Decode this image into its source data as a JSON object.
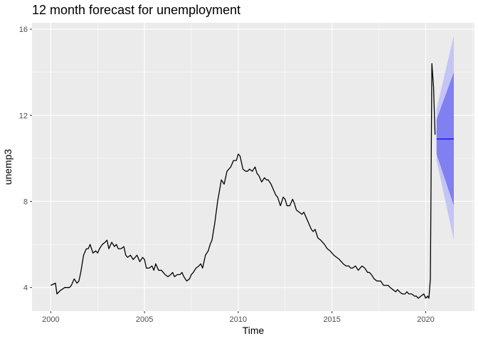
{
  "chart_data": {
    "type": "line",
    "title": "12 month forecast for unemployment",
    "xlabel": "Time",
    "ylabel": "unemp3",
    "xlim": [
      1999.0,
      2022.6
    ],
    "ylim": [
      2.9,
      16.3
    ],
    "x_ticks": [
      2000,
      2005,
      2010,
      2015,
      2020
    ],
    "x_tick_labels": [
      "2000",
      "2005",
      "2010",
      "2015",
      "2020"
    ],
    "y_ticks": [
      4,
      8,
      12,
      16
    ],
    "y_tick_labels": [
      "4",
      "8",
      "12",
      "16"
    ],
    "grid": true,
    "colors": {
      "panel": "#ebebeb",
      "grid_major": "#ffffff",
      "series": "#000000",
      "forecast_line": "#0000ff",
      "band_80": "#8080f0",
      "band_95": "#c4c4f5"
    },
    "series": [
      {
        "x": [
          2000.0,
          2000.25,
          2000.33,
          2000.5,
          2000.75,
          2001.0,
          2001.1,
          2001.25,
          2001.4,
          2001.5,
          2001.6,
          2001.75,
          2001.9,
          2002.0,
          2002.1,
          2002.25,
          2002.4,
          2002.5,
          2002.6,
          2002.75,
          2002.9,
          2003.0,
          2003.1,
          2003.25,
          2003.4,
          2003.5,
          2003.6,
          2003.75,
          2003.9,
          2004.0,
          2004.1,
          2004.25,
          2004.4,
          2004.5,
          2004.6,
          2004.75,
          2004.9,
          2005.0,
          2005.1,
          2005.25,
          2005.4,
          2005.5,
          2005.6,
          2005.75,
          2005.9,
          2006.0,
          2006.1,
          2006.25,
          2006.4,
          2006.5,
          2006.6,
          2006.75,
          2006.9,
          2007.0,
          2007.1,
          2007.25,
          2007.4,
          2007.5,
          2007.6,
          2007.75,
          2007.9,
          2008.0,
          2008.1,
          2008.25,
          2008.4,
          2008.5,
          2008.6,
          2008.75,
          2008.9,
          2009.0,
          2009.1,
          2009.25,
          2009.4,
          2009.5,
          2009.6,
          2009.75,
          2009.9,
          2010.0,
          2010.1,
          2010.25,
          2010.4,
          2010.5,
          2010.6,
          2010.75,
          2010.9,
          2011.0,
          2011.1,
          2011.25,
          2011.4,
          2011.5,
          2011.6,
          2011.75,
          2011.9,
          2012.0,
          2012.1,
          2012.25,
          2012.4,
          2012.5,
          2012.6,
          2012.75,
          2012.9,
          2013.0,
          2013.1,
          2013.25,
          2013.4,
          2013.5,
          2013.6,
          2013.75,
          2013.9,
          2014.0,
          2014.1,
          2014.25,
          2014.4,
          2014.5,
          2014.6,
          2014.75,
          2014.9,
          2015.0,
          2015.1,
          2015.25,
          2015.4,
          2015.5,
          2015.6,
          2015.75,
          2015.9,
          2016.0,
          2016.1,
          2016.25,
          2016.4,
          2016.5,
          2016.6,
          2016.75,
          2016.9,
          2017.0,
          2017.1,
          2017.25,
          2017.4,
          2017.5,
          2017.6,
          2017.75,
          2017.9,
          2018.0,
          2018.1,
          2018.25,
          2018.4,
          2018.5,
          2018.6,
          2018.75,
          2018.9,
          2019.0,
          2019.1,
          2019.25,
          2019.4,
          2019.5,
          2019.6,
          2019.75,
          2019.9,
          2020.0,
          2020.1,
          2020.17,
          2020.25,
          2020.33,
          2020.42,
          2020.5
        ],
        "values": [
          4.1,
          4.2,
          3.7,
          3.85,
          4.0,
          4.0,
          4.1,
          4.4,
          4.2,
          4.3,
          4.7,
          5.5,
          5.8,
          5.8,
          6.0,
          5.6,
          5.7,
          5.6,
          5.8,
          6.0,
          6.1,
          6.2,
          5.8,
          6.1,
          5.9,
          6.0,
          5.8,
          5.8,
          5.9,
          5.5,
          5.4,
          5.5,
          5.3,
          5.4,
          5.5,
          5.2,
          5.4,
          5.3,
          4.9,
          4.9,
          5.0,
          4.8,
          5.1,
          4.8,
          4.8,
          4.7,
          4.6,
          4.5,
          4.6,
          4.7,
          4.5,
          4.6,
          4.6,
          4.7,
          4.5,
          4.3,
          4.4,
          4.6,
          4.7,
          4.9,
          5.0,
          5.1,
          4.9,
          5.5,
          5.7,
          6.0,
          6.2,
          7.0,
          8.0,
          8.5,
          9.0,
          8.8,
          9.4,
          9.5,
          9.6,
          9.9,
          9.9,
          10.2,
          10.1,
          9.5,
          9.4,
          9.4,
          9.5,
          9.4,
          9.6,
          9.3,
          9.2,
          8.9,
          9.1,
          9.0,
          9.0,
          8.8,
          8.5,
          8.3,
          8.2,
          7.8,
          8.2,
          8.1,
          7.8,
          7.8,
          8.1,
          7.9,
          7.6,
          7.5,
          7.4,
          7.5,
          7.3,
          7.0,
          6.7,
          6.6,
          6.7,
          6.3,
          6.2,
          6.1,
          6.0,
          5.8,
          5.7,
          5.6,
          5.5,
          5.4,
          5.3,
          5.2,
          5.1,
          5.0,
          5.0,
          4.9,
          4.9,
          5.0,
          4.8,
          4.9,
          5.0,
          4.9,
          4.7,
          4.7,
          4.6,
          4.4,
          4.3,
          4.3,
          4.3,
          4.1,
          4.1,
          4.1,
          4.0,
          3.9,
          3.8,
          3.9,
          3.8,
          3.7,
          3.7,
          3.8,
          3.7,
          3.7,
          3.6,
          3.6,
          3.5,
          3.6,
          3.7,
          3.5,
          3.6,
          3.5,
          4.4,
          14.4,
          13.3,
          11.1
        ],
        "color": "#000000"
      }
    ],
    "forecast": {
      "x": [
        2020.58,
        2021.5
      ],
      "mean": [
        10.9,
        10.9
      ],
      "lo80": [
        10.2,
        7.8
      ],
      "hi80": [
        11.8,
        14.0
      ],
      "lo95": [
        9.9,
        6.2
      ],
      "hi95": [
        12.3,
        15.7
      ]
    }
  }
}
